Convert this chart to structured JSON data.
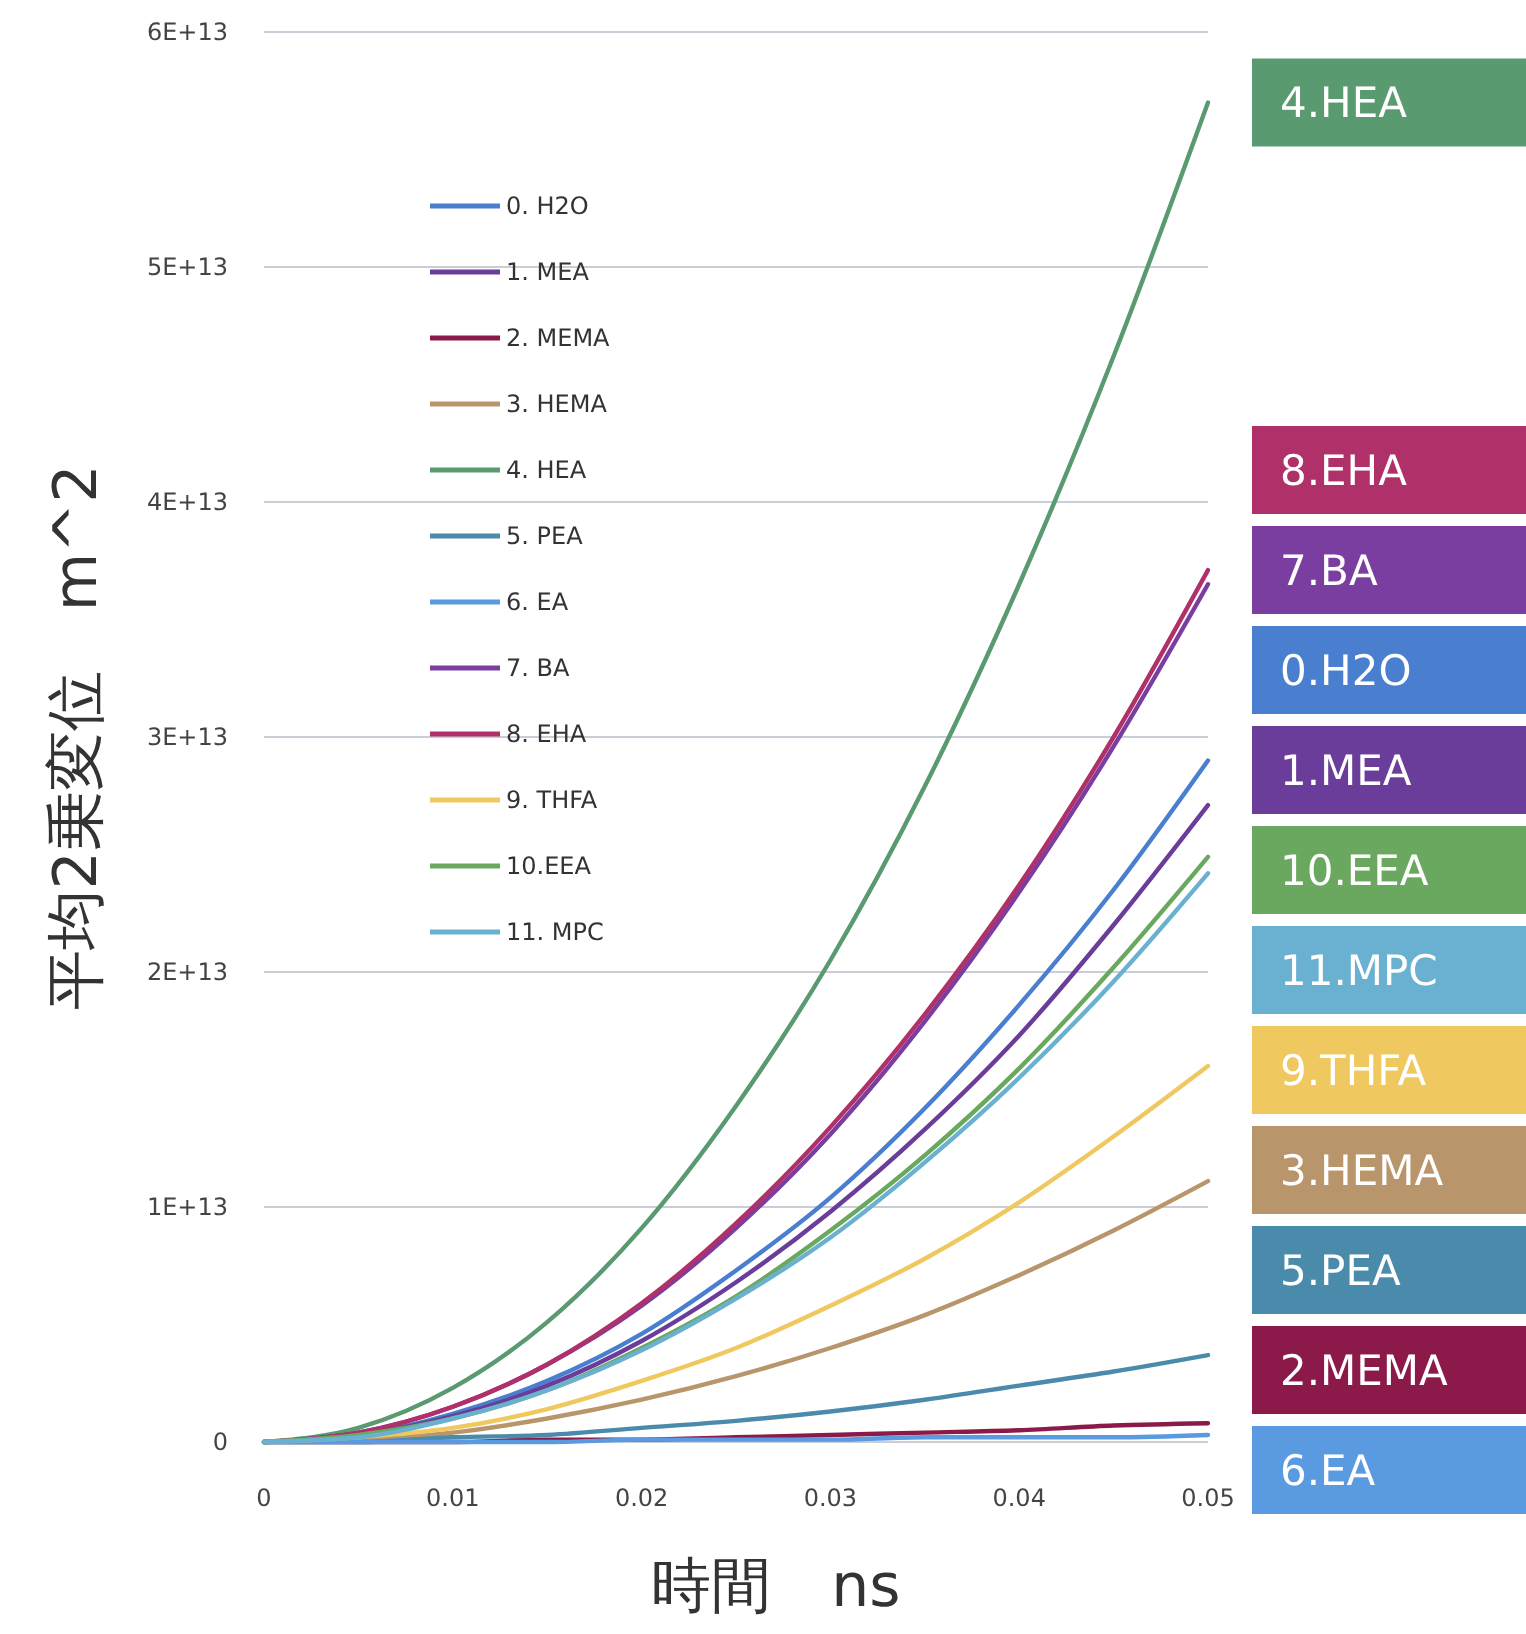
{
  "chart_data": {
    "type": "line",
    "xlabel": "時間　ns",
    "ylabel": "平均2乗変位　m^2",
    "x": [
      0,
      0.005,
      0.01,
      0.015,
      0.02,
      0.025,
      0.03,
      0.035,
      0.04,
      0.045,
      0.05
    ],
    "xlim": [
      0,
      0.05
    ],
    "xticks": [
      0,
      0.01,
      0.02,
      0.03,
      0.04,
      0.05
    ],
    "ylim": [
      0,
      60000000000000.0
    ],
    "yticks": [
      {
        "value": 0,
        "label": "0"
      },
      {
        "value": 10000000000000.0,
        "label": "1E+13"
      },
      {
        "value": 20000000000000.0,
        "label": "2E+13"
      },
      {
        "value": 30000000000000.0,
        "label": "3E+13"
      },
      {
        "value": 40000000000000.0,
        "label": "4E+13"
      },
      {
        "value": 50000000000000.0,
        "label": "5E+13"
      },
      {
        "value": 60000000000000.0,
        "label": "6E+13"
      }
    ],
    "grid": "y",
    "legend": "top left",
    "marker": "none",
    "line_style": "solid",
    "series": [
      {
        "name": "0. H2O",
        "color": "#4a7fd0",
        "values": [
          0,
          300000000000.0,
          1200000000000.0,
          2600000000000.0,
          4600000000000.0,
          7300000000000.0,
          10400000000000.0,
          14200000000000.0,
          18600000000000.0,
          23500000000000.0,
          29000000000000.0
        ]
      },
      {
        "name": "1. MEA",
        "color": "#6a3d9a",
        "values": [
          0,
          300000000000.0,
          1100000000000.0,
          2400000000000.0,
          4300000000000.0,
          6800000000000.0,
          9800000000000.0,
          13300000000000.0,
          17300000000000.0,
          22000000000000.0,
          27100000000000.0
        ]
      },
      {
        "name": "2. MEMA",
        "color": "#8b1a4a",
        "values": [
          0,
          0,
          0,
          100000000000.0,
          100000000000.0,
          200000000000.0,
          300000000000.0,
          400000000000.0,
          500000000000.0,
          700000000000.0,
          800000000000.0
        ]
      },
      {
        "name": "3. HEMA",
        "color": "#b8956a",
        "values": [
          0,
          100000000000.0,
          400000000000.0,
          1000000000000.0,
          1800000000000.0,
          2800000000000.0,
          4000000000000.0,
          5400000000000.0,
          7100000000000.0,
          9000000000000.0,
          11100000000000.0
        ]
      },
      {
        "name": "4. HEA",
        "color": "#5a9a70",
        "values": [
          0,
          600000000000.0,
          2300000000000.0,
          5100000000000.0,
          9100000000000.0,
          14300000000000.0,
          20500000000000.0,
          27900000000000.0,
          36500000000000.0,
          46200000000000.0,
          57000000000000.0
        ]
      },
      {
        "name": "5. PEA",
        "color": "#4a8aaa",
        "values": [
          0,
          0,
          200000000000.0,
          300000000000.0,
          600000000000.0,
          900000000000.0,
          1300000000000.0,
          1800000000000.0,
          2400000000000.0,
          3000000000000.0,
          3700000000000.0
        ]
      },
      {
        "name": "6. EA",
        "color": "#5a9ae0",
        "values": [
          0,
          0,
          0,
          0,
          100000000000.0,
          100000000000.0,
          100000000000.0,
          200000000000.0,
          200000000000.0,
          200000000000.0,
          300000000000.0
        ]
      },
      {
        "name": "7. BA",
        "color": "#7a3da0",
        "values": [
          0,
          400000000000.0,
          1500000000000.0,
          3300000000000.0,
          5800000000000.0,
          9100000000000.0,
          13100000000000.0,
          17900000000000.0,
          23400000000000.0,
          29600000000000.0,
          36500000000000.0
        ]
      },
      {
        "name": "8. EHA",
        "color": "#b0306a",
        "values": [
          0,
          400000000000.0,
          1500000000000.0,
          3300000000000.0,
          5900000000000.0,
          9300000000000.0,
          13400000000000.0,
          18200000000000.0,
          23700000000000.0,
          30000000000000.0,
          37100000000000.0
        ]
      },
      {
        "name": "9. THFA",
        "color": "#f0c860",
        "values": [
          0,
          200000000000.0,
          600000000000.0,
          1400000000000.0,
          2600000000000.0,
          4000000000000.0,
          5800000000000.0,
          7800000000000.0,
          10200000000000.0,
          13000000000000.0,
          16000000000000.0
        ]
      },
      {
        "name": "10.EEA",
        "color": "#6aa860",
        "values": [
          0,
          300000000000.0,
          1000000000000.0,
          2200000000000.0,
          4000000000000.0,
          6200000000000.0,
          9000000000000.0,
          12200000000000.0,
          15900000000000.0,
          20200000000000.0,
          24900000000000.0
        ]
      },
      {
        "name": "11. MPC",
        "color": "#6ab0d0",
        "values": [
          0,
          200000000000.0,
          1000000000000.0,
          2200000000000.0,
          3900000000000.0,
          6100000000000.0,
          8700000000000.0,
          11900000000000.0,
          15500000000000.0,
          19600000000000.0,
          24200000000000.0
        ]
      }
    ],
    "annotations": [
      "4.HEA",
      "8.EHA",
      "7.BA",
      "0.H2O",
      "1.MEA",
      "10.EEA",
      "11.MPC",
      "9.THFA",
      "3.HEMA",
      "5.PEA",
      "2.MEMA",
      "6.EA"
    ]
  }
}
